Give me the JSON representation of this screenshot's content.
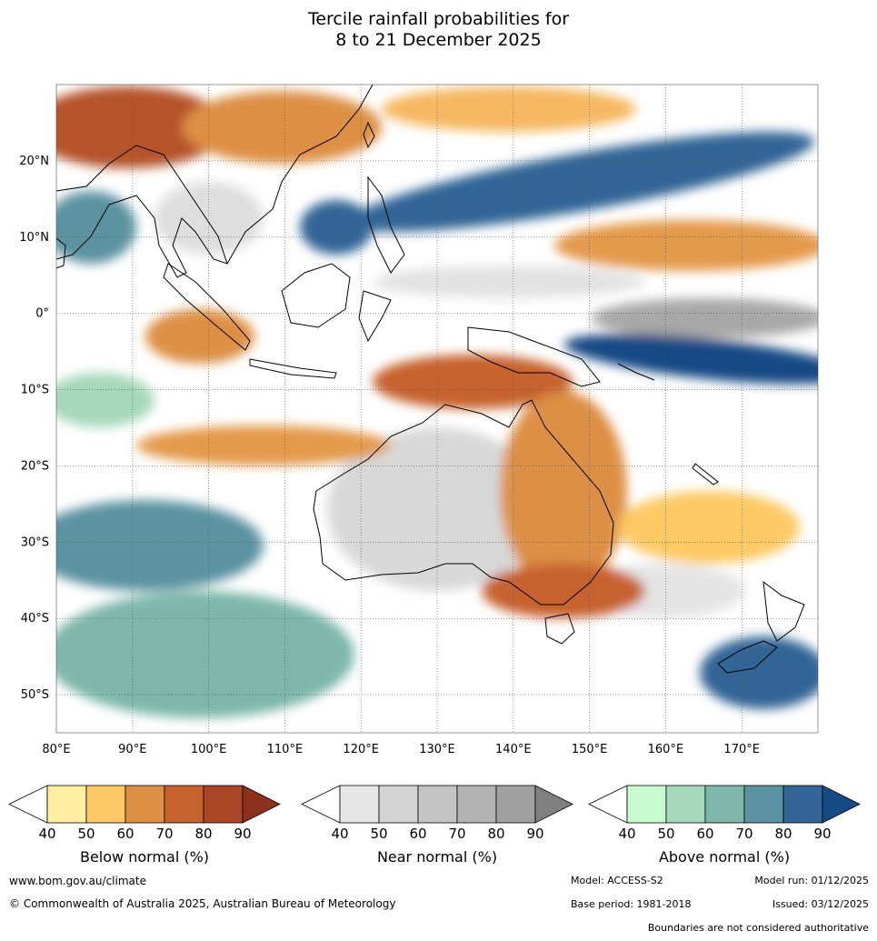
{
  "title_line1": "Tercile rainfall probabilities for",
  "title_line2": "8 to 21 December 2025",
  "map": {
    "lon_range": [
      80,
      180
    ],
    "lat_range": [
      -55,
      30
    ],
    "lon_ticks": [
      "80°E",
      "90°E",
      "100°E",
      "110°E",
      "120°E",
      "130°E",
      "140°E",
      "150°E",
      "160°E",
      "170°E"
    ],
    "lat_ticks": [
      "20°N",
      "10°N",
      "0°",
      "10°S",
      "20°S",
      "30°S",
      "40°S",
      "50°S"
    ]
  },
  "legends": [
    {
      "title": "Below normal (%)",
      "ticks": [
        "40",
        "50",
        "60",
        "70",
        "80",
        "90"
      ],
      "colors": [
        "#ffffff",
        "#ffeea0",
        "#fdc965",
        "#dd8f45",
        "#c7622f",
        "#aa4625",
        "#8c321b"
      ]
    },
    {
      "title": "Near normal (%)",
      "ticks": [
        "40",
        "50",
        "60",
        "70",
        "80",
        "90"
      ],
      "colors": [
        "#ffffff",
        "#e6e6e6",
        "#d4d4d4",
        "#c4c4c4",
        "#b3b3b3",
        "#a0a0a0",
        "#808080"
      ]
    },
    {
      "title": "Above normal (%)",
      "ticks": [
        "40",
        "50",
        "60",
        "70",
        "80",
        "90"
      ],
      "colors": [
        "#ffffff",
        "#c8fcce",
        "#a6d8bb",
        "#7eb7aa",
        "#5b93a1",
        "#336596",
        "#154a85"
      ]
    }
  ],
  "footer": {
    "website": "www.bom.gov.au/climate",
    "copyright": "© Commonwealth of Australia 2025, Australian Bureau of Meteorology",
    "model": "Model: ACCESS-S2",
    "model_run": "Model run: 01/12/2025",
    "base_period": "Base period: 1981-2018",
    "issued": "Issued: 03/12/2025",
    "disclaimer": "Boundaries are not considered authoritative"
  }
}
